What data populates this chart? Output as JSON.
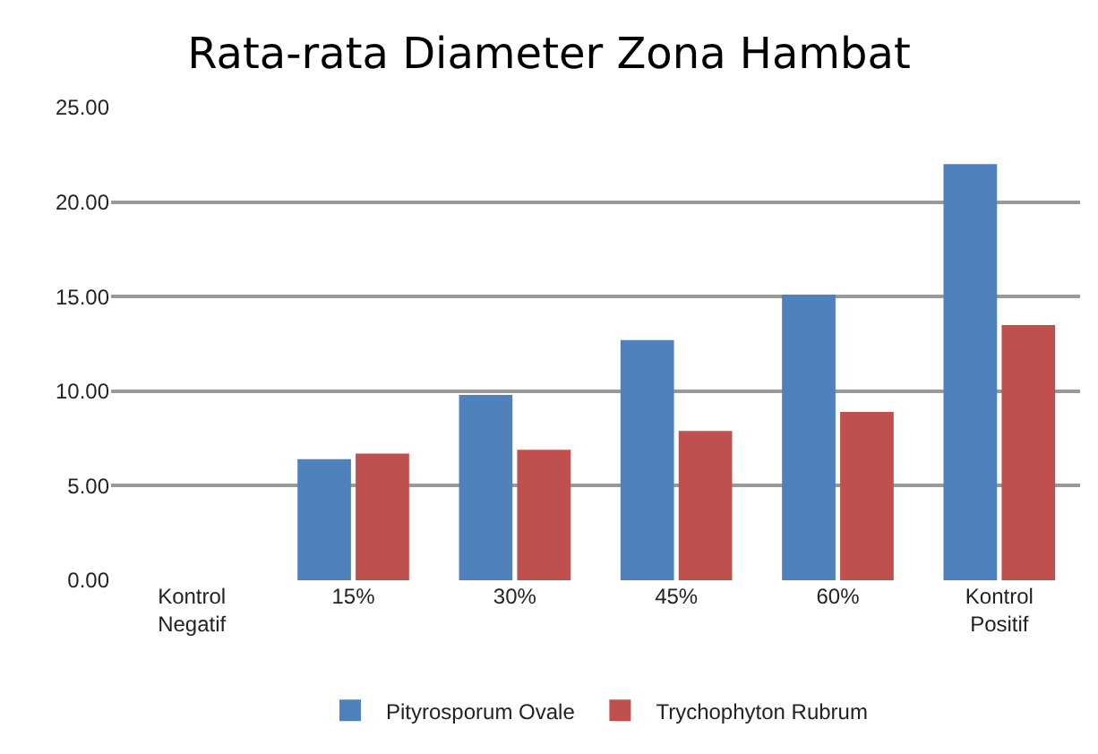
{
  "chart_data": {
    "type": "bar",
    "title": "Rata-rata Diameter Zona Hambat",
    "categories": [
      "Kontrol Negatif",
      "15%",
      "30%",
      "45%",
      "60%",
      "Kontrol Positif"
    ],
    "series": [
      {
        "name": "Pityrosporum Ovale",
        "color": "#4f81bd",
        "values": [
          0,
          6.4,
          9.8,
          12.7,
          15.1,
          22.0
        ]
      },
      {
        "name": "Trychophyton Rubrum",
        "color": "#c0504d",
        "values": [
          0,
          6.7,
          6.9,
          7.9,
          8.9,
          13.5
        ]
      }
    ],
    "ylim": [
      0,
      25
    ],
    "yticks": [
      {
        "value": 0,
        "label": "0.00"
      },
      {
        "value": 5,
        "label": "5.00"
      },
      {
        "value": 10,
        "label": "10.00"
      },
      {
        "value": 15,
        "label": "15.00"
      },
      {
        "value": 20,
        "label": "20.00"
      },
      {
        "value": 25,
        "label": "25.00"
      }
    ],
    "grid": "y",
    "legend": "bottom"
  }
}
